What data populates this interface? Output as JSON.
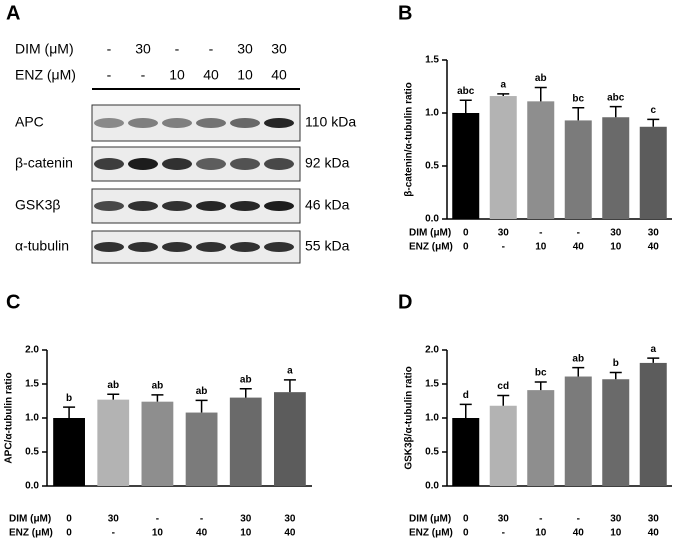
{
  "blot": {
    "panel": "A",
    "condition_rows": [
      {
        "name": "DIM (μM)",
        "labels": [
          "-",
          "30",
          "-",
          "-",
          "30",
          "30"
        ]
      },
      {
        "name": "ENZ (μM)",
        "labels": [
          "-",
          "-",
          "10",
          "40",
          "10",
          "40"
        ]
      }
    ],
    "proteins": [
      "APC",
      "β-catenin",
      "GSK3β",
      "α-tubulin"
    ],
    "sizes": [
      "110 kDa",
      "92 kDa",
      "46 kDa",
      "55 kDa"
    ]
  },
  "chart_data": [
    {
      "type": "bar",
      "panel": "B",
      "ylabel": "β-catenin/α-tubulin ratio",
      "category_rows": [
        {
          "name": "DIM (μM)",
          "labels": [
            "0",
            "30",
            "-",
            "-",
            "30",
            "30"
          ]
        },
        {
          "name": "ENZ (μM)",
          "labels": [
            "0",
            "-",
            "10",
            "40",
            "10",
            "40"
          ]
        }
      ],
      "values": [
        1.0,
        1.16,
        1.11,
        0.93,
        0.96,
        0.87
      ],
      "errors": [
        0.12,
        0.02,
        0.13,
        0.12,
        0.1,
        0.07
      ],
      "annotations": [
        "abc",
        "a",
        "ab",
        "bc",
        "abc",
        "c"
      ],
      "colors": [
        "#000000",
        "#b3b3b3",
        "#8e8e8e",
        "#7b7b7b",
        "#6a6a6a",
        "#5c5c5c"
      ],
      "ylim": [
        0,
        1.5
      ],
      "yticks": [
        {
          "value": 0,
          "label": "0.0"
        },
        0.5,
        {
          "value": 1,
          "label": "1.0"
        },
        1.5
      ]
    },
    {
      "type": "bar",
      "panel": "C",
      "ylabel": "APC/α-tubulin ratio",
      "category_rows": [
        {
          "name": "DIM (μM)",
          "labels": [
            "0",
            "30",
            "-",
            "-",
            "30",
            "30"
          ]
        },
        {
          "name": "ENZ (μM)",
          "labels": [
            "0",
            "-",
            "10",
            "40",
            "10",
            "40"
          ]
        }
      ],
      "values": [
        1.0,
        1.27,
        1.24,
        1.08,
        1.3,
        1.38
      ],
      "errors": [
        0.16,
        0.08,
        0.1,
        0.18,
        0.13,
        0.18
      ],
      "annotations": [
        "b",
        "ab",
        "ab",
        "ab",
        "ab",
        "a"
      ],
      "colors": [
        "#000000",
        "#b3b3b3",
        "#8e8e8e",
        "#7b7b7b",
        "#6a6a6a",
        "#5c5c5c"
      ],
      "ylim": [
        0,
        2
      ],
      "yticks": [
        {
          "value": 0,
          "label": "0.0"
        },
        0.5,
        {
          "value": 1,
          "label": "1.0"
        },
        1.5,
        {
          "value": 2,
          "label": "2.0"
        }
      ]
    },
    {
      "type": "bar",
      "panel": "D",
      "ylabel": "GSK3β/α-tubulin ratio",
      "category_rows": [
        {
          "name": "DIM (μM)",
          "labels": [
            "0",
            "30",
            "-",
            "-",
            "30",
            "30"
          ]
        },
        {
          "name": "ENZ (μM)",
          "labels": [
            "0",
            "-",
            "10",
            "40",
            "10",
            "40"
          ]
        }
      ],
      "values": [
        1.0,
        1.18,
        1.41,
        1.61,
        1.57,
        1.81
      ],
      "errors": [
        0.2,
        0.15,
        0.12,
        0.13,
        0.1,
        0.07
      ],
      "annotations": [
        "d",
        "cd",
        "bc",
        "ab",
        "b",
        "a"
      ],
      "colors": [
        "#000000",
        "#b3b3b3",
        "#8e8e8e",
        "#7b7b7b",
        "#6a6a6a",
        "#5c5c5c"
      ],
      "ylim": [
        0,
        2
      ],
      "yticks": [
        {
          "value": 0,
          "label": "0.0"
        },
        0.5,
        {
          "value": 1,
          "label": "1.0"
        },
        1.5,
        {
          "value": 2,
          "label": "2.0"
        }
      ]
    }
  ]
}
